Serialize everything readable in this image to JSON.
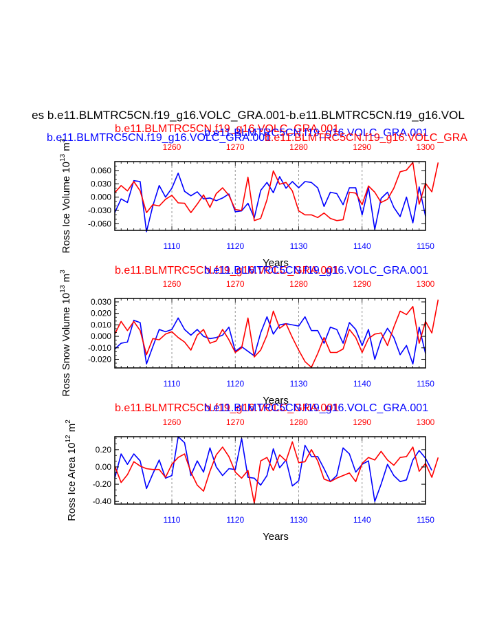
{
  "main_title": "es b.e11.BLMTRC5CN.f19_g16.VOLC_GRA.001-b.e11.BLMTRC5CN.f19_g16.VOL",
  "subtitle_overlap": "b.e11.BLMTRC5CN.f19_g16.VOLC_GRA.001",
  "colors": {
    "blue": "#0000ff",
    "red": "#ff0000",
    "axis": "#000000",
    "grid": "#999999"
  },
  "chart_data": [
    {
      "type": "line",
      "ylabel_main": "Ross Ice Volume 10",
      "ylabel_exp": "13",
      "ylabel_unit": " m",
      "ylabel_unit_exp": "3",
      "xlabel": "Years",
      "title_red": "b.e11.BLMTRC5CN.f19_g16.VOLC_GRA.001",
      "title_blue": "b.e11.BLMTRC5CN.f19_g16.VOLC_GRA.001",
      "top_title_blue": "b.e11.BLMTRC5CN.f19_g16.VOLC_GRA.001",
      "top_title_red": "b.e11.BLMTRC5CN.f19_g16.VOLC_GRA",
      "ylim": [
        -0.075,
        0.08
      ],
      "yticks": [
        0.06,
        0.03,
        0.0,
        -0.03,
        -0.06
      ],
      "ytick_labels": [
        "0.060",
        "0.030",
        "0.000",
        "-0.030",
        "-0.060"
      ],
      "bottom_xlim": [
        1101,
        1150
      ],
      "bottom_xticks": [
        1110,
        1120,
        1130,
        1140,
        1150
      ],
      "bottom_xtick_labels": [
        "1110",
        "1120",
        "1130",
        "1140",
        "1150"
      ],
      "top_xlim": [
        1251,
        1300
      ],
      "top_xticks": [
        1260,
        1270,
        1280,
        1290,
        1300
      ],
      "top_xtick_labels": [
        "1260",
        "1270",
        "1280",
        "1290",
        "1300"
      ],
      "series": [
        {
          "name": "blue",
          "axis": "bottom",
          "values": [
            -0.035,
            -0.004,
            -0.012,
            0.037,
            0.035,
            -0.078,
            -0.02,
            0.026,
            0.0,
            0.02,
            0.054,
            0.013,
            0.003,
            0.012,
            -0.004,
            -0.002,
            -0.008,
            -0.002,
            0.007,
            -0.033,
            -0.031,
            -0.014,
            -0.047,
            0.015,
            0.033,
            0.01,
            0.046,
            0.02,
            0.035,
            0.021,
            0.035,
            0.033,
            0.021,
            -0.021,
            0.011,
            0.008,
            -0.017,
            0.021,
            0.021,
            -0.04,
            0.022,
            -0.073,
            -0.003,
            0.011,
            -0.023,
            -0.044,
            0.0,
            -0.058,
            0.023,
            -0.043
          ]
        },
        {
          "name": "red",
          "axis": "top",
          "values": [
            0.01,
            0.026,
            0.014,
            0.035,
            0.014,
            -0.035,
            -0.017,
            -0.02,
            -0.005,
            0.004,
            -0.013,
            -0.014,
            -0.035,
            -0.016,
            0.005,
            -0.023,
            0.008,
            0.021,
            0.004,
            -0.028,
            -0.03,
            0.045,
            -0.053,
            -0.048,
            -0.006,
            0.059,
            0.029,
            0.033,
            0.014,
            -0.031,
            -0.04,
            -0.04,
            -0.046,
            -0.036,
            -0.048,
            -0.053,
            -0.051,
            0.011,
            0.009,
            -0.017,
            0.025,
            0.011,
            -0.012,
            -0.005,
            0.02,
            0.057,
            0.061,
            0.078,
            -0.016,
            0.031,
            0.012,
            0.078
          ]
        }
      ]
    },
    {
      "type": "line",
      "ylabel_main": "Ross Snow Volume 10",
      "ylabel_exp": "13",
      "ylabel_unit": " m",
      "ylabel_unit_exp": "3",
      "xlabel": "Years",
      "title_red": "b.e11.BLMTRC5CN.f19_g16.VOLC_GRA.001",
      "title_blue": "b.e11.BLMTRC5CN.f19_g16.VOLC_GRA.001",
      "ylim": [
        -0.0275,
        0.033
      ],
      "yticks": [
        0.03,
        0.02,
        0.01,
        0.0,
        -0.01,
        -0.02
      ],
      "ytick_labels": [
        "0.030",
        "0.020",
        "0.010",
        "0.000",
        "-0.010",
        "-0.020"
      ],
      "bottom_xlim": [
        1101,
        1150
      ],
      "bottom_xticks": [
        1110,
        1120,
        1130,
        1140,
        1150
      ],
      "bottom_xtick_labels": [
        "1110",
        "1120",
        "1130",
        "1140",
        "1150"
      ],
      "top_xlim": [
        1251,
        1300
      ],
      "top_xticks": [
        1260,
        1270,
        1280,
        1290,
        1300
      ],
      "top_xtick_labels": [
        "1260",
        "1270",
        "1280",
        "1290",
        "1300"
      ],
      "series": [
        {
          "name": "blue",
          "axis": "bottom",
          "values": [
            -0.011,
            -0.006,
            -0.005,
            0.014,
            0.012,
            -0.024,
            -0.009,
            0.006,
            0.004,
            0.006,
            0.016,
            0.006,
            0.001,
            0.006,
            0.0,
            -0.002,
            -0.001,
            0.001,
            0.008,
            -0.013,
            -0.009,
            -0.013,
            -0.017,
            0.003,
            0.017,
            0.002,
            0.01,
            0.011,
            0.01,
            0.009,
            0.017,
            0.005,
            0.005,
            -0.006,
            0.008,
            0.006,
            -0.006,
            0.012,
            0.006,
            -0.008,
            0.006,
            -0.02,
            -0.003,
            0.007,
            -0.001,
            -0.016,
            -0.008,
            -0.024,
            0.008,
            -0.015
          ]
        },
        {
          "name": "red",
          "axis": "top",
          "values": [
            0.002,
            0.013,
            0.005,
            0.013,
            0.005,
            -0.016,
            -0.002,
            -0.003,
            0.002,
            0.004,
            -0.001,
            -0.005,
            -0.012,
            0.001,
            0.006,
            -0.006,
            -0.004,
            0.006,
            -0.003,
            -0.014,
            -0.01,
            0.016,
            -0.018,
            -0.012,
            0.001,
            0.022,
            0.007,
            0.011,
            -0.001,
            -0.012,
            -0.022,
            -0.027,
            -0.015,
            -0.001,
            -0.014,
            -0.014,
            -0.011,
            0.006,
            -0.001,
            -0.014,
            -0.002,
            0.002,
            0.003,
            -0.008,
            0.008,
            0.022,
            0.019,
            0.026,
            -0.006,
            0.013,
            0.003,
            0.032
          ]
        }
      ]
    },
    {
      "type": "line",
      "ylabel_main": "Ross Ice Area 10",
      "ylabel_exp": "12",
      "ylabel_unit": " m",
      "ylabel_unit_exp": "2",
      "xlabel": "Years",
      "title_red": "b.e11.BLMTRC5CN.f19_g16.VOLC_GRA.001",
      "title_blue": "b.e11.BLMTRC5CN.f19_g16.VOLC_GRA.001",
      "ylim": [
        -0.43,
        0.35
      ],
      "yticks": [
        0.2,
        0.0,
        -0.2,
        -0.4
      ],
      "ytick_labels": [
        "0.20",
        "0.00",
        "-0.20",
        "-0.40"
      ],
      "bottom_xlim": [
        1101,
        1150
      ],
      "bottom_xticks": [
        1110,
        1120,
        1130,
        1140,
        1150
      ],
      "bottom_xtick_labels": [
        "1110",
        "1120",
        "1130",
        "1140",
        "1150"
      ],
      "top_xlim": [
        1251,
        1300
      ],
      "top_xticks": [
        1260,
        1270,
        1280,
        1290,
        1300
      ],
      "top_xtick_labels": [
        "1260",
        "1270",
        "1280",
        "1290",
        "1300"
      ],
      "series": [
        {
          "name": "blue",
          "axis": "bottom",
          "values": [
            -0.13,
            0.15,
            0.03,
            0.15,
            0.07,
            -0.25,
            -0.08,
            0.08,
            -0.13,
            -0.1,
            0.35,
            0.28,
            -0.1,
            0.07,
            -0.06,
            0.22,
            0.0,
            -0.1,
            -0.02,
            -0.03,
            0.33,
            -0.12,
            -0.13,
            -0.21,
            -0.1,
            0.21,
            -0.01,
            0.08,
            -0.22,
            -0.16,
            0.25,
            0.12,
            0.12,
            -0.02,
            -0.17,
            -0.1,
            0.22,
            0.15,
            -0.06,
            0.03,
            0.07,
            -0.4,
            -0.2,
            0.03,
            -0.1,
            -0.17,
            -0.15,
            0.08,
            0.19,
            0.1,
            -0.04
          ]
        },
        {
          "name": "red",
          "axis": "top",
          "values": [
            0.01,
            -0.18,
            -0.09,
            0.06,
            0.01,
            -0.02,
            -0.03,
            -0.03,
            -0.12,
            0.03,
            0.11,
            0.15,
            -0.06,
            -0.21,
            -0.28,
            -0.05,
            0.14,
            0.23,
            0.12,
            -0.06,
            -0.13,
            -0.04,
            -0.42,
            0.07,
            0.11,
            -0.04,
            0.14,
            0.07,
            0.29,
            0.05,
            0.06,
            0.2,
            0.07,
            -0.14,
            -0.17,
            -0.13,
            -0.1,
            -0.07,
            -0.17,
            0.04,
            0.11,
            0.08,
            0.18,
            0.08,
            0.02,
            0.11,
            0.12,
            0.23,
            -0.05,
            0.04,
            -0.12,
            0.11
          ]
        }
      ]
    }
  ]
}
